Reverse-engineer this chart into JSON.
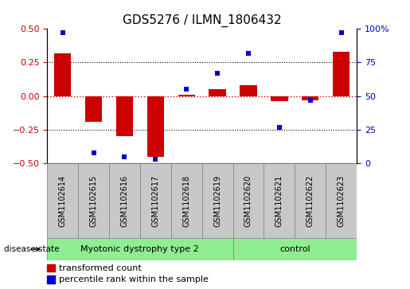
{
  "title": "GDS5276 / ILMN_1806432",
  "samples": [
    "GSM1102614",
    "GSM1102615",
    "GSM1102616",
    "GSM1102617",
    "GSM1102618",
    "GSM1102619",
    "GSM1102620",
    "GSM1102621",
    "GSM1102622",
    "GSM1102623"
  ],
  "transformed_count": [
    0.32,
    -0.19,
    -0.3,
    -0.45,
    0.01,
    0.05,
    0.08,
    -0.04,
    -0.03,
    0.33
  ],
  "percentile_rank": [
    97,
    8,
    5,
    3,
    55,
    67,
    82,
    27,
    47,
    97
  ],
  "left_ylim": [
    -0.5,
    0.5
  ],
  "right_ylim": [
    0,
    100
  ],
  "left_yticks": [
    -0.5,
    -0.25,
    0.0,
    0.25,
    0.5
  ],
  "right_yticks": [
    0,
    25,
    50,
    75,
    100
  ],
  "right_yticklabels": [
    "0",
    "25",
    "50",
    "75",
    "100%"
  ],
  "disease_groups": [
    {
      "label": "Myotonic dystrophy type 2",
      "n": 6,
      "color": "#90EE90"
    },
    {
      "label": "control",
      "n": 4,
      "color": "#90EE90"
    }
  ],
  "bar_color": "#CC0000",
  "scatter_color": "#0000CC",
  "bar_width": 0.55,
  "hline_color": "#CC0000",
  "dotted_color": "black",
  "legend_bar_label": "transformed count",
  "legend_scatter_label": "percentile rank within the sample",
  "disease_label": "disease state",
  "gray_color": "#C8C8C8",
  "border_color": "#888888",
  "title_fontsize": 11,
  "tick_fontsize": 8,
  "sample_fontsize": 7,
  "disease_fontsize": 8,
  "legend_fontsize": 8
}
